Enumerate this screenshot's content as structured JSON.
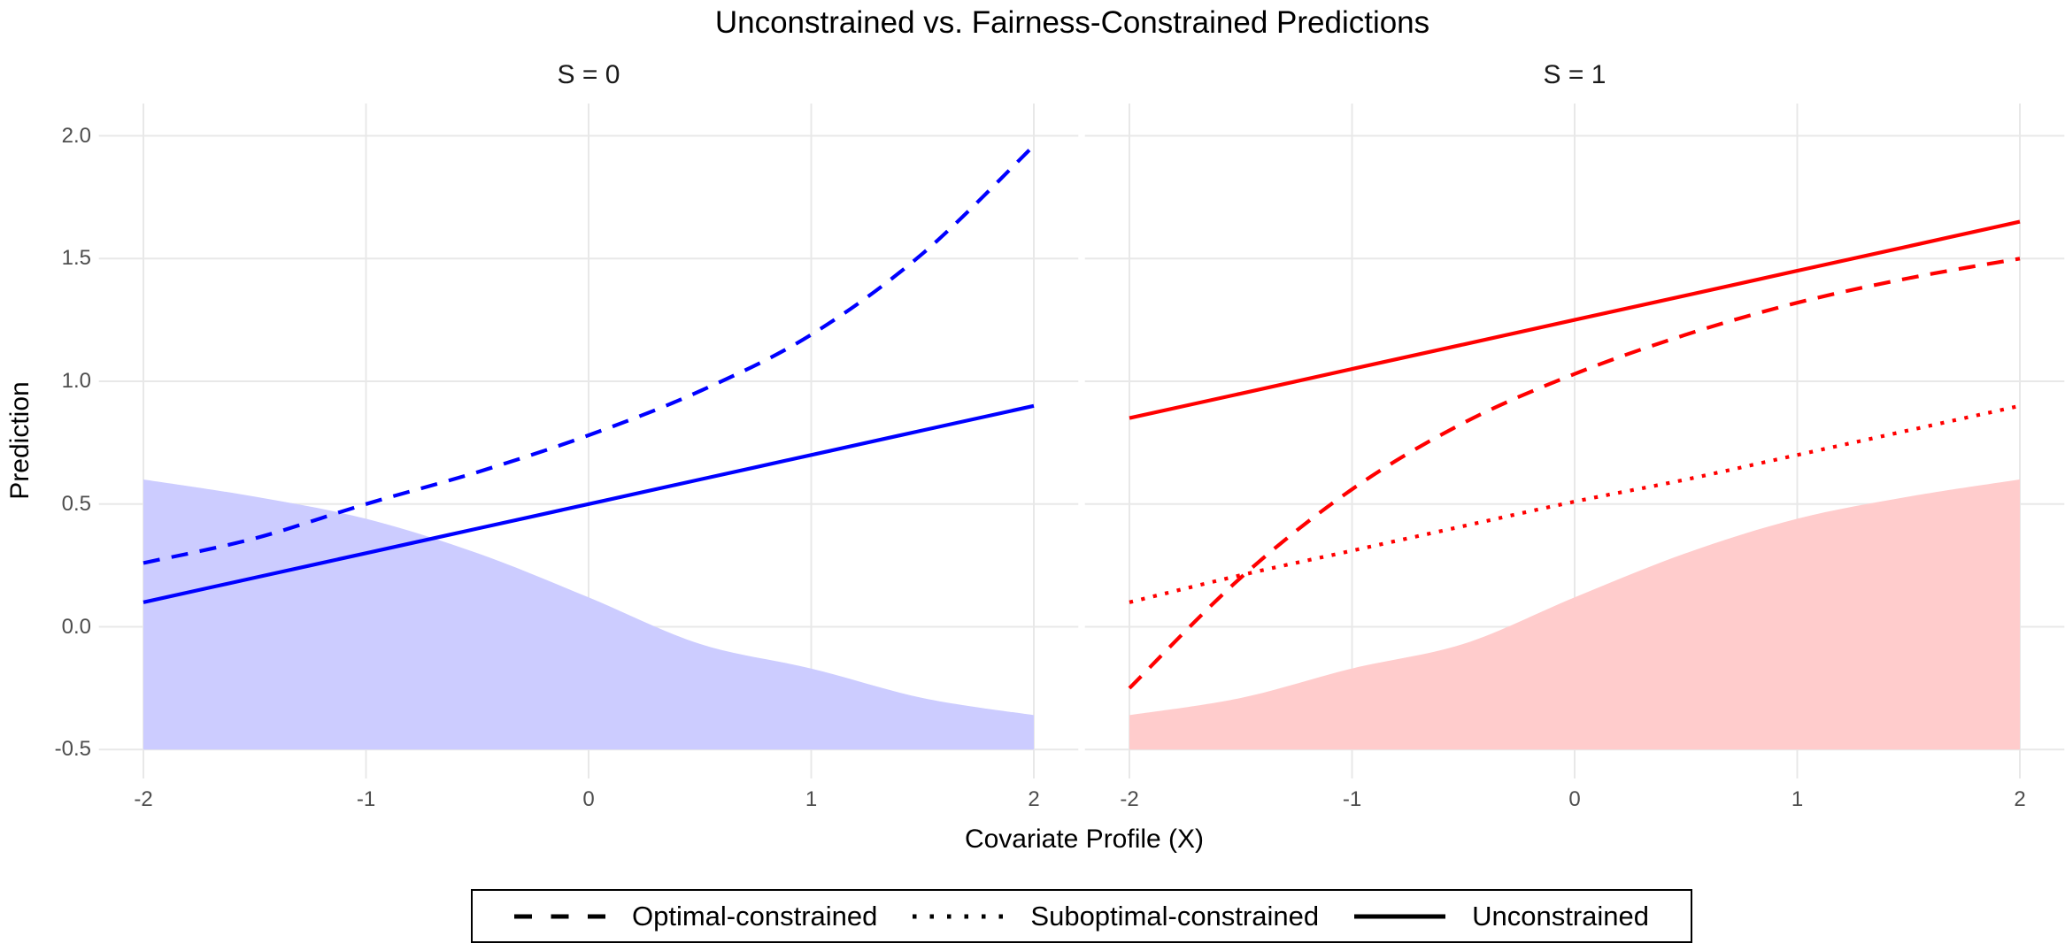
{
  "title": "Unconstrained vs. Fairness-Constrained Predictions",
  "axes": {
    "x_label": "Covariate Profile (X)",
    "y_label": "Prediction"
  },
  "legend": {
    "items": [
      {
        "label": "Optimal-constrained",
        "style": "dashed"
      },
      {
        "label": "Suboptimal-constrained",
        "style": "dotted"
      },
      {
        "label": "Unconstrained",
        "style": "solid"
      }
    ]
  },
  "chart_data": {
    "type": "line",
    "x": [
      -2,
      -1.5,
      -1,
      -0.5,
      0,
      0.5,
      1,
      1.5,
      2
    ],
    "x_ticks": [
      {
        "value": -2,
        "label": "-2"
      },
      {
        "value": -1,
        "label": "-1"
      },
      {
        "value": 0,
        "label": "0"
      },
      {
        "value": 1,
        "label": "1"
      },
      {
        "value": 2,
        "label": "2"
      }
    ],
    "y_ticks": [
      {
        "value": -0.5,
        "label": "-0.5"
      },
      {
        "value": 0.0,
        "label": "0.0"
      },
      {
        "value": 0.5,
        "label": "0.5"
      },
      {
        "value": 1.0,
        "label": "1.0"
      },
      {
        "value": 1.5,
        "label": "1.5"
      },
      {
        "value": 2.0,
        "label": "2.0"
      }
    ],
    "xlim": [
      -2.2,
      2.2
    ],
    "ylim": [
      -0.62,
      2.13
    ],
    "grid": true,
    "legend_position": "bottom",
    "panels": [
      {
        "facet_label": "S = 0",
        "line_color": "#0000FF",
        "area_fill": "#CCCCFF",
        "area_baseline": -0.5,
        "area_top": [
          0.6,
          0.53,
          0.44,
          0.3,
          0.12,
          -0.07,
          -0.17,
          -0.29,
          -0.36
        ],
        "series": [
          {
            "name": "Optimal-constrained",
            "style": "dashed",
            "values": [
              0.26,
              0.36,
              0.5,
              0.63,
              0.78,
              0.96,
              1.19,
              1.52,
              1.96
            ]
          },
          {
            "name": "Unconstrained",
            "style": "solid",
            "values": [
              0.1,
              0.2,
              0.3,
              0.4,
              0.5,
              0.6,
              0.7,
              0.8,
              0.9
            ]
          }
        ]
      },
      {
        "facet_label": "S = 1",
        "line_color": "#FF0000",
        "area_fill": "#FFCCCC",
        "area_baseline": -0.5,
        "area_top": [
          -0.36,
          -0.29,
          -0.17,
          -0.07,
          0.12,
          0.3,
          0.44,
          0.53,
          0.6
        ],
        "series": [
          {
            "name": "Optimal-constrained",
            "style": "dashed",
            "values": [
              -0.25,
              0.2,
              0.56,
              0.83,
              1.03,
              1.19,
              1.32,
              1.42,
              1.5
            ]
          },
          {
            "name": "Suboptimal-constrained",
            "style": "dotted",
            "values": [
              0.1,
              0.21,
              0.31,
              0.41,
              0.51,
              0.6,
              0.7,
              0.8,
              0.9
            ]
          },
          {
            "name": "Unconstrained",
            "style": "solid",
            "values": [
              0.85,
              0.95,
              1.05,
              1.15,
              1.25,
              1.35,
              1.45,
              1.55,
              1.65
            ]
          }
        ]
      }
    ],
    "colors": {
      "blue_line": "#0000FF",
      "blue_fill": "#CCCCFF",
      "red_line": "#FF0000",
      "red_fill": "#FFCCCC",
      "gridline": "#E8E8E8",
      "tick_text": "#4D4D4D",
      "text": "#000000"
    }
  }
}
